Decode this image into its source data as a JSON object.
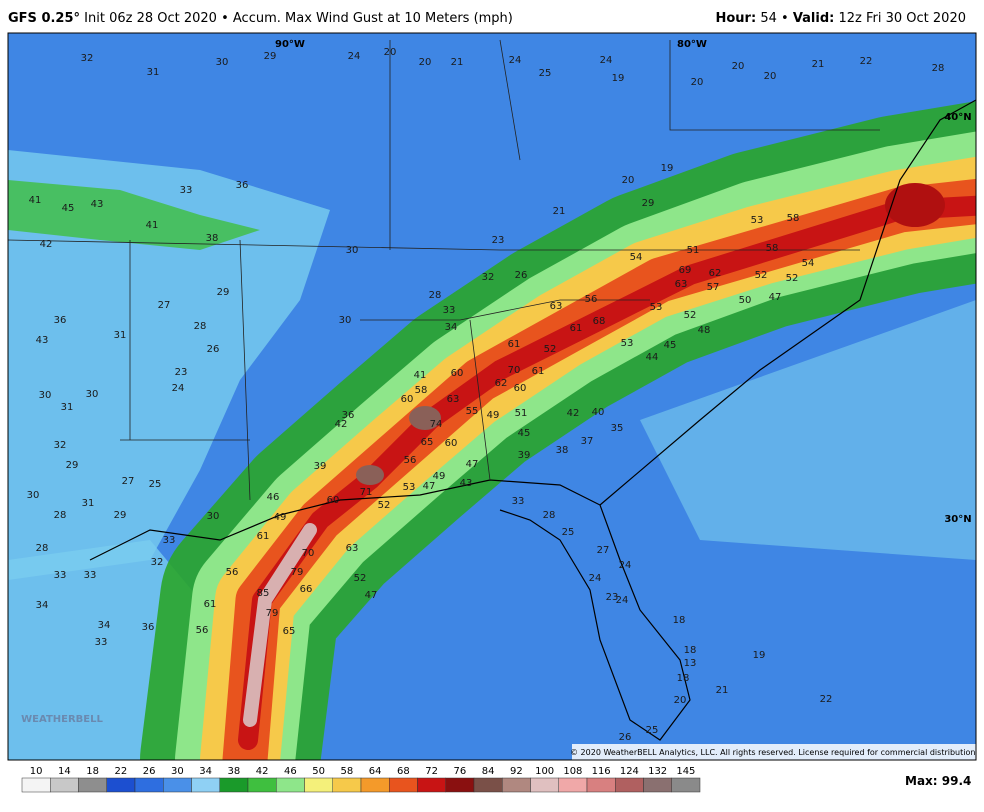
{
  "header": {
    "model": "GFS 0.25°",
    "init": "Init 06z 28 Oct 2020",
    "separator": "•",
    "product": "Accum. Max Wind Gust at 10 Meters (mph)",
    "hour_label": "Hour:",
    "hour": "54",
    "valid_label": "Valid:",
    "valid": "12z Fri 30 Oct 2020"
  },
  "map": {
    "lon_labels": [
      "90°W",
      "80°W"
    ],
    "lat_labels": [
      "40°N",
      "30°N"
    ],
    "logo": "WEATHERBELL",
    "copyright": "© 2020 WeatherBELL Analytics, LLC. All rights reserved. License required for commercial distribution.",
    "wind_labels": [
      32,
      31,
      30,
      29,
      24,
      20,
      20,
      21,
      24,
      25,
      24,
      19,
      20,
      20,
      20,
      21,
      22,
      28,
      41,
      45,
      43,
      41,
      42,
      38,
      36,
      33,
      36,
      43,
      31,
      27,
      28,
      29,
      30,
      28,
      33,
      34,
      30,
      26,
      32,
      23,
      21,
      20,
      19,
      29,
      54,
      51,
      69,
      62,
      63,
      57,
      53,
      58,
      58,
      52,
      54,
      52,
      50,
      47,
      52,
      53,
      48,
      45,
      44,
      63,
      56,
      68,
      61,
      61,
      52,
      53,
      70,
      62,
      60,
      61,
      58,
      60,
      41,
      60,
      63,
      74,
      65,
      60,
      55,
      49,
      51,
      42,
      40,
      45,
      39,
      38,
      37,
      35,
      56,
      49,
      47,
      43,
      53,
      47,
      71,
      60,
      52,
      39,
      42,
      36,
      46,
      49,
      61,
      70,
      63,
      79,
      56,
      85,
      66,
      52,
      47,
      61,
      79,
      56,
      65,
      33,
      28,
      25,
      27,
      24,
      24,
      23,
      24,
      18,
      18,
      13,
      18,
      20,
      21,
      19,
      22,
      26,
      25,
      28,
      33,
      33,
      34,
      34,
      36,
      33,
      32,
      33,
      30,
      29,
      27,
      25,
      24,
      23,
      26,
      30,
      31,
      30,
      32,
      29,
      30,
      28,
      31
    ]
  },
  "colorbar": {
    "ticks": [
      10,
      14,
      18,
      22,
      26,
      30,
      34,
      38,
      42,
      46,
      50,
      58,
      64,
      68,
      72,
      76,
      84,
      92,
      100,
      108,
      116,
      124,
      132,
      145
    ],
    "colors": [
      "#f4f4f4",
      "#c8c8c8",
      "#8e8e8e",
      "#1c4fd0",
      "#2e6ee0",
      "#4a90e8",
      "#8fd0f4",
      "#1a9a2a",
      "#3fbf3f",
      "#8ee68a",
      "#f4f07a",
      "#f6c94a",
      "#f49a2a",
      "#e8541e",
      "#c81414",
      "#8a1010",
      "#7a5048",
      "#b08880",
      "#e0c0c0",
      "#f0a8a8",
      "#d88080",
      "#b06060",
      "#8a7070",
      "#8a8a8a"
    ],
    "max_label": "Max:",
    "max_value": 99.4
  }
}
